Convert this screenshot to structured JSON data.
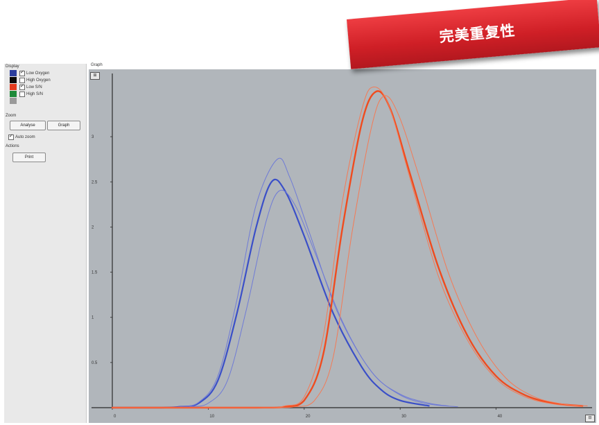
{
  "banner": {
    "text": "完美重复性"
  },
  "panel": {
    "display_label": "Display",
    "legend": [
      {
        "label": "Low Oxygen",
        "color": "#2b3e9e",
        "checked": true
      },
      {
        "label": "High Oxygen",
        "color": "#0a0a0a",
        "checked": false
      },
      {
        "label": "Low S/N",
        "color": "#e23a1c",
        "checked": true
      },
      {
        "label": "High S/N",
        "color": "#1f8a3a",
        "checked": false
      },
      {
        "label": "",
        "color": "#9a9a9a",
        "checked": false
      }
    ],
    "zoom_label": "Zoom",
    "analyse_button": "Analyse",
    "graph_button": "Graph",
    "auto_zoom_label": "Auto zoom",
    "actions_label": "Actions",
    "print_button": "Print"
  },
  "graph": {
    "title": "Graph",
    "zoom_in_icon": "zoom-in-icon",
    "zoom_out_icon": "zoom-out-icon"
  },
  "chart_data": {
    "type": "line",
    "xlim": [
      0,
      50
    ],
    "ylim": [
      0,
      3.5
    ],
    "x_ticks": [
      0,
      10,
      20,
      30,
      40
    ],
    "y_ticks": [
      0.5,
      1,
      1.5,
      2,
      2.5,
      3
    ],
    "grid": false,
    "series": [
      {
        "color": "#3a4fc8",
        "width": 2.2,
        "points": [
          [
            0,
            0
          ],
          [
            5,
            0
          ],
          [
            7,
            0.01
          ],
          [
            9,
            0.05
          ],
          [
            11,
            0.3
          ],
          [
            13,
            1.05
          ],
          [
            15,
            2.0
          ],
          [
            16.6,
            2.5
          ],
          [
            18,
            2.4
          ],
          [
            20,
            1.9
          ],
          [
            23,
            1.05
          ],
          [
            26,
            0.45
          ],
          [
            28,
            0.2
          ],
          [
            30,
            0.08
          ],
          [
            33,
            0.02
          ]
        ]
      },
      {
        "color": "#6f7bd6",
        "width": 1.0,
        "points": [
          [
            0,
            0
          ],
          [
            5,
            0
          ],
          [
            7,
            0.01
          ],
          [
            9,
            0.06
          ],
          [
            11,
            0.35
          ],
          [
            13,
            1.2
          ],
          [
            15,
            2.25
          ],
          [
            17.2,
            2.75
          ],
          [
            18.5,
            2.55
          ],
          [
            20.5,
            1.95
          ],
          [
            23.5,
            1.05
          ],
          [
            27,
            0.4
          ],
          [
            30,
            0.15
          ],
          [
            33,
            0.05
          ],
          [
            35,
            0.02
          ]
        ]
      },
      {
        "color": "#6f7bd6",
        "width": 1.0,
        "points": [
          [
            0,
            0
          ],
          [
            6,
            0
          ],
          [
            8,
            0.01
          ],
          [
            10,
            0.05
          ],
          [
            12,
            0.3
          ],
          [
            14,
            1.1
          ],
          [
            16,
            2.05
          ],
          [
            17.4,
            2.4
          ],
          [
            19,
            2.25
          ],
          [
            21,
            1.75
          ],
          [
            24,
            0.95
          ],
          [
            27,
            0.4
          ],
          [
            30,
            0.14
          ],
          [
            33,
            0.04
          ],
          [
            36,
            0.01
          ]
        ]
      },
      {
        "color": "#f04b1e",
        "width": 2.4,
        "points": [
          [
            0,
            0
          ],
          [
            15,
            0
          ],
          [
            18,
            0.01
          ],
          [
            20,
            0.08
          ],
          [
            22,
            0.6
          ],
          [
            24,
            2.0
          ],
          [
            26,
            3.15
          ],
          [
            27.5,
            3.5
          ],
          [
            29,
            3.3
          ],
          [
            31,
            2.6
          ],
          [
            34,
            1.55
          ],
          [
            37,
            0.8
          ],
          [
            40,
            0.35
          ],
          [
            43,
            0.14
          ],
          [
            46,
            0.05
          ],
          [
            49,
            0.02
          ]
        ]
      },
      {
        "color": "#f47a55",
        "width": 1.0,
        "points": [
          [
            0,
            0
          ],
          [
            15,
            0
          ],
          [
            18,
            0.02
          ],
          [
            20,
            0.12
          ],
          [
            22,
            0.8
          ],
          [
            24,
            2.3
          ],
          [
            26,
            3.3
          ],
          [
            27.2,
            3.55
          ],
          [
            28.8,
            3.35
          ],
          [
            31,
            2.55
          ],
          [
            34,
            1.45
          ],
          [
            37,
            0.75
          ],
          [
            40,
            0.32
          ],
          [
            43,
            0.12
          ],
          [
            46,
            0.04
          ],
          [
            49,
            0.01
          ]
        ]
      },
      {
        "color": "#f47a55",
        "width": 1.0,
        "points": [
          [
            0,
            0
          ],
          [
            16,
            0
          ],
          [
            19,
            0.01
          ],
          [
            21,
            0.07
          ],
          [
            23,
            0.55
          ],
          [
            25,
            1.95
          ],
          [
            27,
            3.1
          ],
          [
            28.3,
            3.45
          ],
          [
            29.8,
            3.25
          ],
          [
            32,
            2.55
          ],
          [
            35,
            1.5
          ],
          [
            38,
            0.78
          ],
          [
            41,
            0.33
          ],
          [
            44,
            0.12
          ],
          [
            47,
            0.04
          ],
          [
            49.5,
            0.02
          ]
        ]
      }
    ]
  }
}
